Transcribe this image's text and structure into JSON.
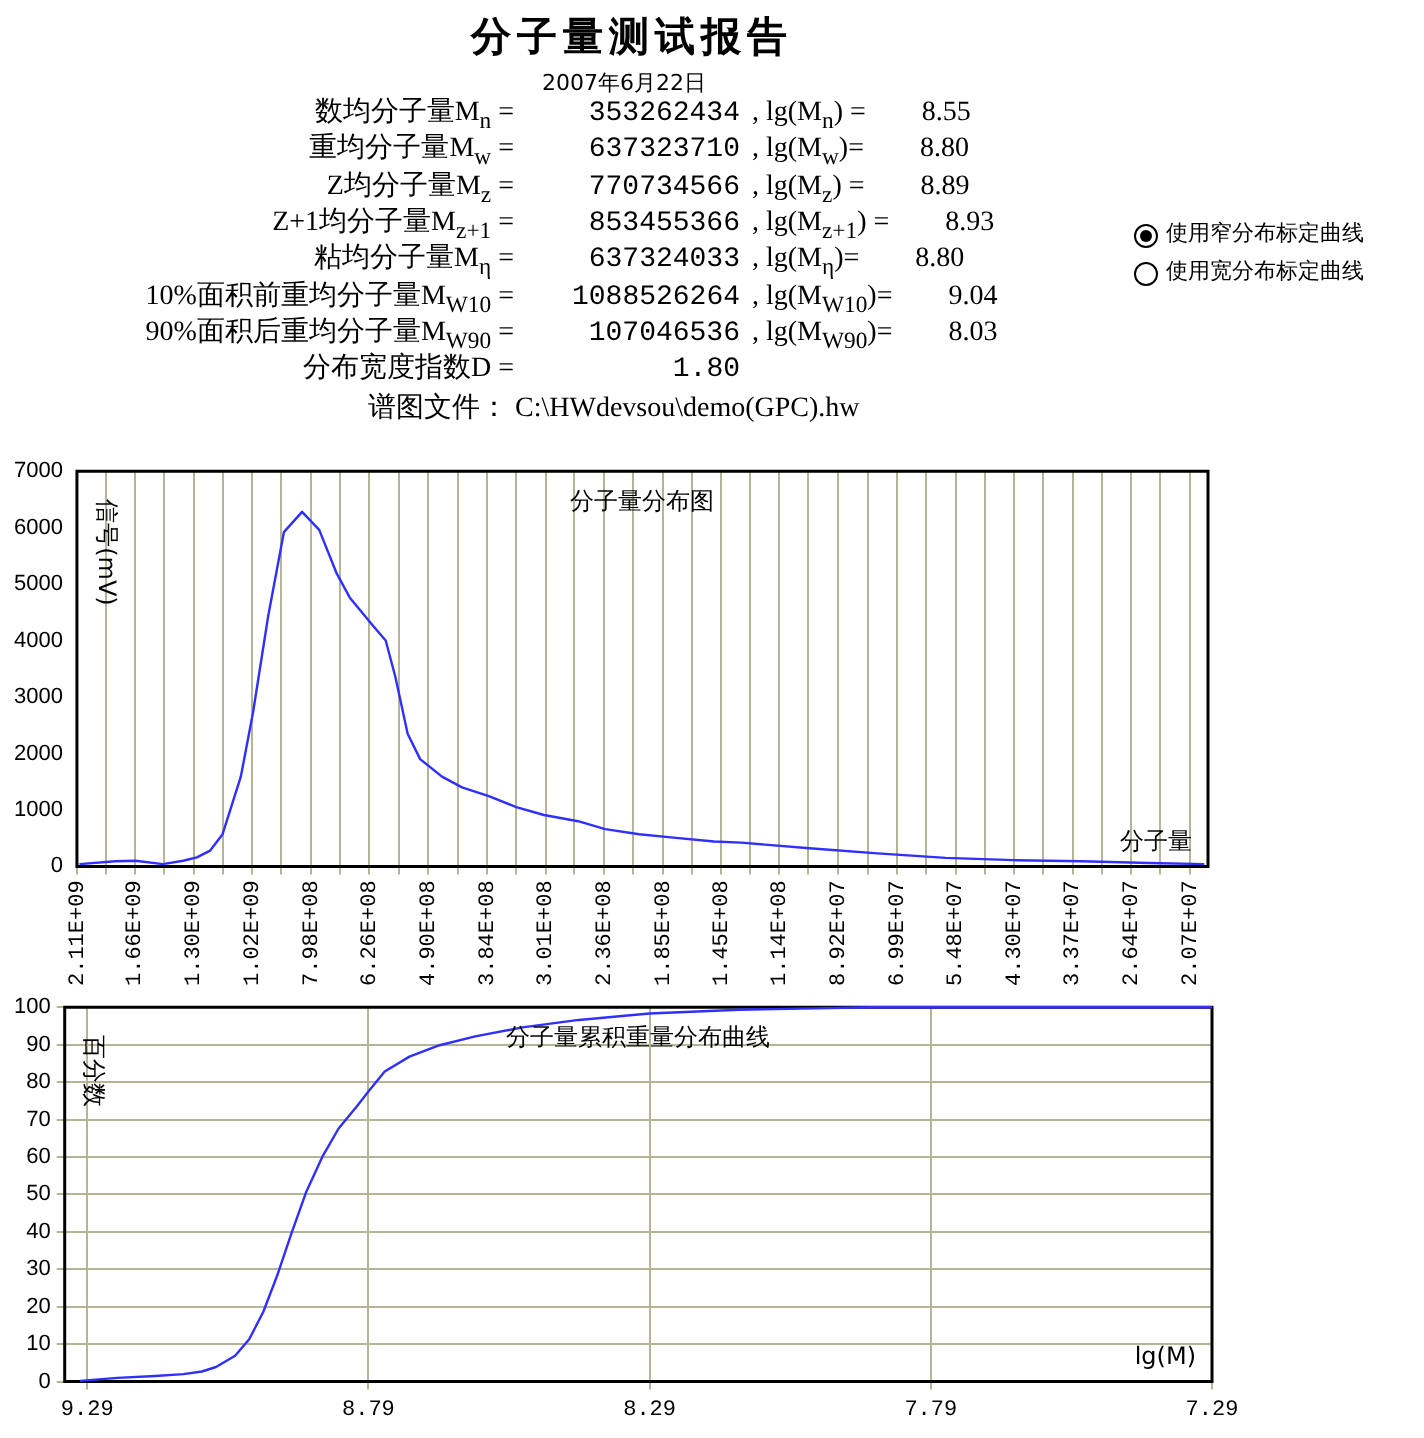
{
  "chart_data": [
    {
      "type": "other",
      "title": "分子量测试报告",
      "subtitle": "2007年6月22日",
      "annotations": [
        "数均分子量M$_{n}$ =",
        "353262434",
        ", lg(M$_{n}$) =",
        "8.55",
        "重均分子量M$_{w}$ =",
        "637323710",
        ", lg(M$_{w}$)=",
        "8.80",
        "Z均分子量M$_{z}$ =",
        "770734566",
        ", lg(M$_{z}$) =",
        "8.89",
        "Z+1均分子量M$_{z+1}$ =",
        "853455366",
        ", lg(M$_{z+1}$) =",
        "8.93",
        "粘均分子量M$_{η}$ =",
        "637324033",
        ", lg(M$_{η}$)=",
        "8.80",
        "10%面积前重均分子量M$_{W10}$ =",
        "1088526264",
        ", lg(M$_{W10}$)=",
        "9.04",
        "90%面积后重均分子量M$_{W90}$ =",
        "107046536",
        ", lg(M$_{W90}$)=",
        "8.03",
        "分布宽度指数D =",
        "1.80",
        "谱图文件： C:\\HWdevsou\\demo(GPC).hw",
        "使用窄分布标定曲线",
        "使用宽分布标定曲线"
      ]
    },
    {
      "type": "line",
      "title": "分子量分布图",
      "xlabel": "分子量",
      "ylabel": "信号(mV)",
      "color": "#2f2fff",
      "log": "x",
      "grid": "x",
      "legend": false,
      "x": [
        2088000000,
        1800000000,
        1654000000,
        1477000000,
        1357000000,
        1282000000,
        1213000000,
        1152000000,
        1068000000,
        1015000000,
        953000000,
        893000000,
        828000000,
        771000000,
        718000000,
        679000000,
        615000000,
        585000000,
        562000000,
        534000000,
        507000000,
        463000000,
        426000000,
        380000000,
        340000000,
        303000000,
        263000000,
        235000000,
        204000000,
        177000000,
        149500000,
        133500000,
        100600000,
        75800000,
        57100000,
        43100000,
        32500000,
        24500000,
        19500000
      ],
      "values": [
        40,
        90,
        100,
        40,
        100,
        160,
        280,
        570,
        1590,
        2730,
        4440,
        5920,
        6280,
        5960,
        5200,
        4760,
        4250,
        4000,
        3360,
        2350,
        1900,
        1590,
        1400,
        1240,
        1050,
        910,
        800,
        660,
        570,
        510,
        440,
        420,
        320,
        230,
        150,
        110,
        90,
        60,
        40
      ],
      "xlim": [
        2110000000,
        19200000
      ],
      "xticks": [
        {
          "value": 2110000000,
          "label": "2.11E+09"
        },
        {
          "value": 1870000000,
          "label": null
        },
        {
          "value": 1660000000,
          "label": "1.66E+09"
        },
        {
          "value": 1470000000,
          "label": null
        },
        {
          "value": 1300000000,
          "label": "1.30E+09"
        },
        {
          "value": 1150000000,
          "label": null
        },
        {
          "value": 1020000000,
          "label": "1.02E+09"
        },
        {
          "value": 902000000,
          "label": null
        },
        {
          "value": 798000000,
          "label": "7.98E+08"
        },
        {
          "value": 707000000,
          "label": null
        },
        {
          "value": 626000000,
          "label": "6.26E+08"
        },
        {
          "value": 554000000,
          "label": null
        },
        {
          "value": 490000000,
          "label": "4.90E+08"
        },
        {
          "value": 434000000,
          "label": null
        },
        {
          "value": 384000000,
          "label": "3.84E+08"
        },
        {
          "value": 340000000,
          "label": null
        },
        {
          "value": 301000000,
          "label": "3.01E+08"
        },
        {
          "value": 267000000,
          "label": null
        },
        {
          "value": 236000000,
          "label": "2.36E+08"
        },
        {
          "value": 209000000,
          "label": null
        },
        {
          "value": 185000000,
          "label": "1.85E+08"
        },
        {
          "value": 164000000,
          "label": null
        },
        {
          "value": 145000000,
          "label": "1.45E+08"
        },
        {
          "value": 129000000,
          "label": null
        },
        {
          "value": 114000000,
          "label": "1.14E+08"
        },
        {
          "value": 101000000,
          "label": null
        },
        {
          "value": 89200000,
          "label": "8.92E+07"
        },
        {
          "value": 79000000,
          "label": null
        },
        {
          "value": 69900000,
          "label": "6.99E+07"
        },
        {
          "value": 61900000,
          "label": null
        },
        {
          "value": 54800000,
          "label": "5.48E+07"
        },
        {
          "value": 48500000,
          "label": null
        },
        {
          "value": 43000000,
          "label": "4.30E+07"
        },
        {
          "value": 38100000,
          "label": null
        },
        {
          "value": 33700000,
          "label": "3.37E+07"
        },
        {
          "value": 29800000,
          "label": null
        },
        {
          "value": 26400000,
          "label": "2.64E+07"
        },
        {
          "value": 23400000,
          "label": null
        },
        {
          "value": 20700000,
          "label": "2.07E+07"
        }
      ],
      "ylim": [
        0,
        7000
      ],
      "yticks": [
        0,
        1000,
        2000,
        3000,
        4000,
        5000,
        6000,
        7000
      ]
    },
    {
      "type": "line",
      "title": "分子量累积重量分布曲线",
      "xlabel": "lg(M)",
      "ylabel": "百分数",
      "color": "#2f2fff",
      "grid": true,
      "legend": false,
      "x": [
        9.303,
        9.236,
        9.169,
        9.119,
        9.086,
        9.061,
        9.027,
        9.002,
        8.977,
        8.952,
        8.927,
        8.901,
        8.871,
        8.843,
        8.809,
        8.79,
        8.761,
        8.717,
        8.667,
        8.6,
        8.516,
        8.416,
        8.29,
        8.131,
        7.897,
        7.29
      ],
      "values": [
        0.2,
        1.0,
        1.5,
        2.0,
        2.7,
        3.9,
        6.9,
        11.3,
        18.6,
        28.4,
        39.5,
        50.5,
        60.3,
        67.6,
        73.8,
        77.5,
        82.8,
        86.8,
        89.7,
        92.2,
        94.6,
        96.6,
        98.3,
        99.3,
        100,
        100
      ],
      "xlim": [
        9.33,
        7.29
      ],
      "xticks": [
        9.29,
        8.79,
        8.29,
        7.79,
        7.29
      ],
      "ylim": [
        0,
        100
      ],
      "yticks": [
        0,
        10,
        20,
        30,
        40,
        50,
        60,
        70,
        80,
        90,
        100
      ]
    }
  ]
}
